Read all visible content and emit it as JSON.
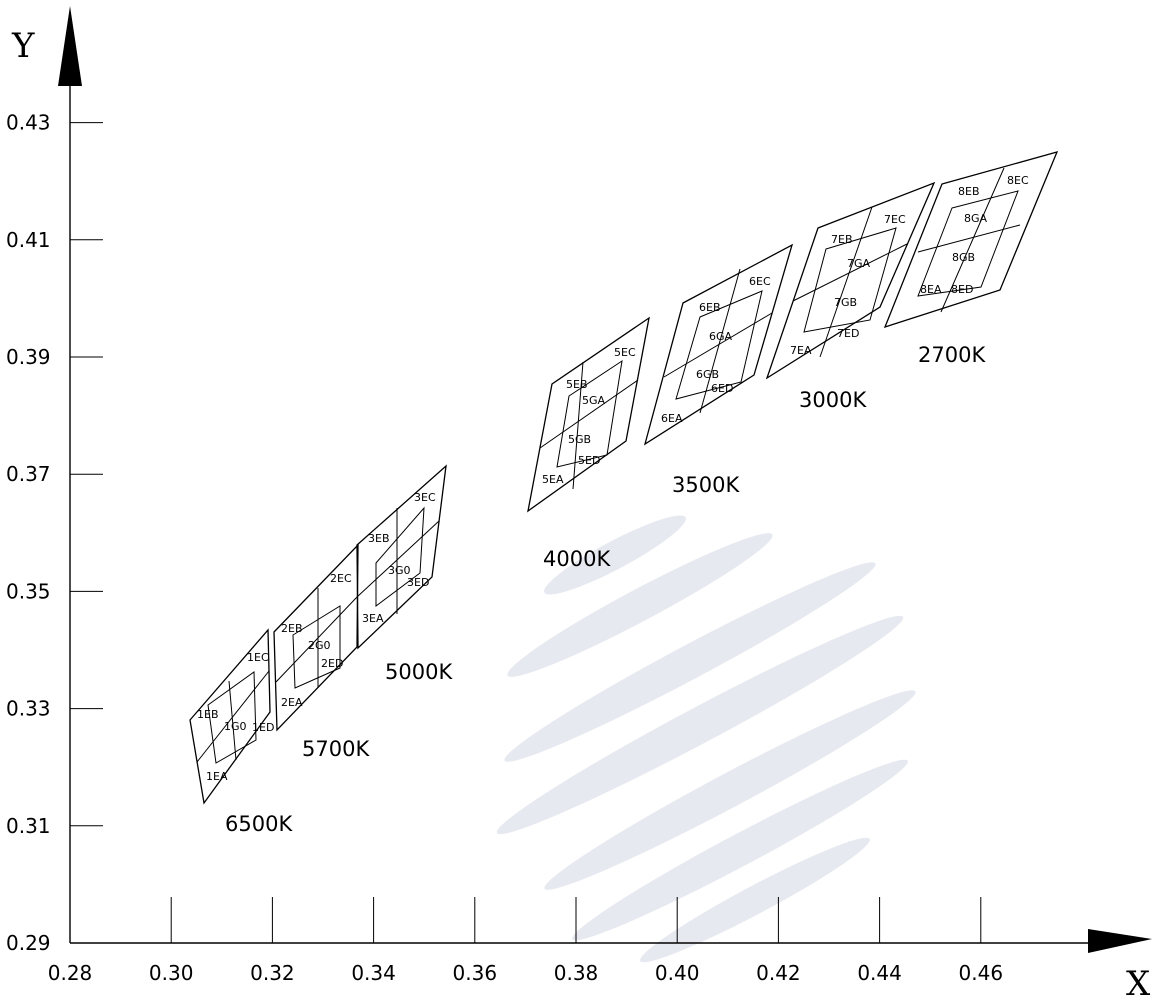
{
  "axes": {
    "x": {
      "label": "X",
      "ticks": [
        "0.28",
        "0.30",
        "0.32",
        "0.34",
        "0.36",
        "0.38",
        "0.40",
        "0.42",
        "0.44",
        "0.46"
      ],
      "range": [
        0.28,
        0.4775
      ]
    },
    "y": {
      "label": "Y",
      "ticks": [
        "0.29",
        "0.31",
        "0.33",
        "0.35",
        "0.37",
        "0.39",
        "0.41",
        "0.43"
      ],
      "range": [
        0.29,
        0.43
      ]
    }
  },
  "colors": {
    "line": "#000000",
    "watermark": "#dde0ea"
  },
  "groups": [
    {
      "cct": "6500K",
      "bins": [
        "1EB",
        "1EC",
        "1G0",
        "1ED",
        "1EA"
      ]
    },
    {
      "cct": "5700K",
      "bins": [
        "2EB",
        "2EC",
        "2G0",
        "2ED",
        "2EA"
      ]
    },
    {
      "cct": "5000K",
      "bins": [
        "3EB",
        "3EC",
        "3G0",
        "3ED",
        "3EA"
      ]
    },
    {
      "cct": "4000K",
      "bins": [
        "5EB",
        "5EC",
        "5GA",
        "5GB",
        "5ED",
        "5EA"
      ]
    },
    {
      "cct": "3500K",
      "bins": [
        "6EB",
        "6EC",
        "6GA",
        "6GB",
        "6ED",
        "6EA"
      ]
    },
    {
      "cct": "3000K",
      "bins": [
        "7EB",
        "7EC",
        "7GA",
        "7GB",
        "7ED",
        "7EA"
      ]
    },
    {
      "cct": "2700K",
      "bins": [
        "8EB",
        "8EC",
        "8GA",
        "8GB",
        "8EA",
        "8ED"
      ]
    }
  ]
}
